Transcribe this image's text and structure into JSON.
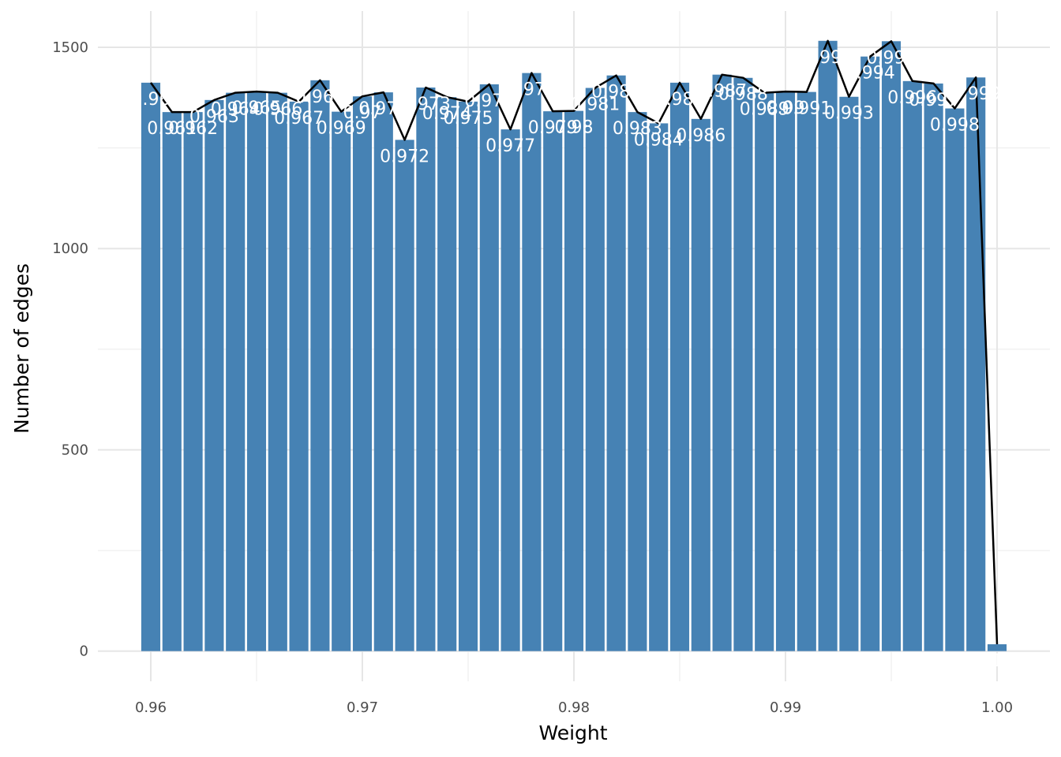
{
  "chart_data": {
    "type": "bar",
    "title": "",
    "xlabel": "Weight",
    "ylabel": "Number of edges",
    "x": [
      0.96,
      0.961,
      0.962,
      0.963,
      0.964,
      0.965,
      0.966,
      0.967,
      0.968,
      0.969,
      0.97,
      0.971,
      0.972,
      0.973,
      0.974,
      0.975,
      0.976,
      0.977,
      0.978,
      0.979,
      0.98,
      0.981,
      0.982,
      0.983,
      0.984,
      0.985,
      0.986,
      0.987,
      0.988,
      0.989,
      0.99,
      0.991,
      0.992,
      0.993,
      0.994,
      0.995,
      0.996,
      0.997,
      0.998,
      0.999,
      1.0
    ],
    "values": [
      1412,
      1339,
      1339,
      1369,
      1387,
      1390,
      1387,
      1365,
      1418,
      1340,
      1378,
      1388,
      1270,
      1400,
      1376,
      1365,
      1408,
      1296,
      1436,
      1341,
      1342,
      1399,
      1430,
      1339,
      1311,
      1412,
      1322,
      1432,
      1424,
      1387,
      1390,
      1389,
      1516,
      1377,
      1477,
      1515,
      1416,
      1410,
      1348,
      1425,
      17
    ],
    "labels": [
      "0.96",
      "0.961",
      "0.962",
      "0.963",
      "0.964",
      "0.965",
      "0.966",
      "0.967",
      "0.968",
      "0.969",
      "0.97",
      "0.971",
      "0.972",
      "0.973",
      "0.974",
      "0.975",
      "0.976",
      "0.977",
      "0.978",
      "0.979",
      "0.98",
      "0.981",
      "0.982",
      "0.983",
      "0.984",
      "0.985",
      "0.986",
      "0.987",
      "0.988",
      "0.989",
      "0.99",
      "0.991",
      "0.992",
      "0.993",
      "0.994",
      "0.995",
      "0.996",
      "0.997",
      "0.998",
      "0.999",
      "1"
    ],
    "xlim": [
      0.9575,
      1.0025
    ],
    "ylim": [
      -75,
      1590
    ],
    "x_ticks": [
      0.96,
      0.97,
      0.98,
      0.99,
      1.0
    ],
    "x_tick_labels": [
      "0.96",
      "0.97",
      "0.98",
      "0.99",
      "1.00"
    ],
    "y_ticks": [
      0,
      500,
      1000,
      1500
    ],
    "y_tick_labels": [
      "0",
      "500",
      "1000",
      "1500"
    ],
    "bar_color": "#4682B4",
    "line_color": "#000000",
    "label_color": "#FFFFFF",
    "grid": true,
    "legend": "none",
    "overlay": "line through bar tops"
  }
}
